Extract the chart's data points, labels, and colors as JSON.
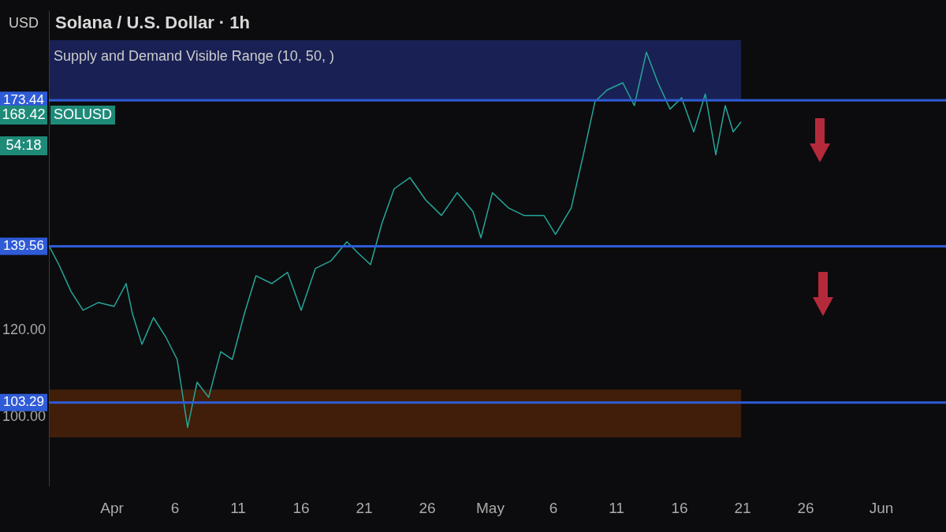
{
  "chart_data": {
    "type": "line",
    "title": "Solana / U.S. Dollar · 1h",
    "ylabel": "USD",
    "x": [
      "--03-27T00:00",
      "--03-27T19:00",
      "--03-28T18:00",
      "--03-29T17:00",
      "--03-30T22:00",
      "--04-01T04:00",
      "--04-02T03:00",
      "--04-02T15:00",
      "--04-03T09:00",
      "--04-04T07:00",
      "--04-05T06:00",
      "--04-06T04:00",
      "--04-07T00:00",
      "--04-07T18:00",
      "--04-08T16:00",
      "--04-09T15:00",
      "--04-10T13:00",
      "--04-11T12:00",
      "--04-12T10:00",
      "--04-13T16:00",
      "--04-14T22:00",
      "--04-16T00:00",
      "--04-17T03:00",
      "--04-18T09:00",
      "--04-19T15:00",
      "--04-20T13:00",
      "--04-21T12:00",
      "--04-22T10:00",
      "--04-23T09:00",
      "--04-24T15:00",
      "--04-25T21:00",
      "--04-27T03:00",
      "--04-28T09:00",
      "--04-29T15:00",
      "--04-30T06:00",
      "--05-01T04:00",
      "--05-02T10:00",
      "--05-03T16:00",
      "--05-05T06:00",
      "--05-06T04:00",
      "--05-07T10:00",
      "--05-08T09:00",
      "--05-09T07:00",
      "--05-10T06:00",
      "--05-11T12:00",
      "--05-12T10:00",
      "--05-13T09:00",
      "--05-14T07:00",
      "--05-15T06:00",
      "--05-16T04:00",
      "--05-17T03:00",
      "--05-18T01:00",
      "--05-18T21:00",
      "--05-19T15:00",
      "--05-20T06:00",
      "--05-20T21:00"
    ],
    "series": [
      {
        "color": "#26a69a",
        "values": [
          139.7,
          135.3,
          129.1,
          124.7,
          126.5,
          125.6,
          130.9,
          123.9,
          116.8,
          123,
          118.6,
          113.3,
          97.5,
          108,
          104.5,
          115.1,
          113.3,
          123.9,
          132.7,
          130.9,
          133.5,
          124.7,
          134.4,
          136.2,
          140.6,
          137.9,
          135.3,
          145,
          152.9,
          155.5,
          150.3,
          146.7,
          152,
          147.6,
          141.5,
          152,
          148.5,
          146.7,
          146.7,
          142.3,
          148.5,
          160.8,
          173.1,
          175.8,
          177.5,
          172.2,
          184.6,
          177.5,
          171.4,
          174,
          166.1,
          174.9,
          160.8,
          172.2,
          166.1,
          168.4
        ]
      }
    ],
    "xlim": [
      "--03-27T00:00",
      "--06-06T03:00"
    ],
    "xticks": [
      {
        "value": "--04-01",
        "label": "Apr"
      },
      {
        "value": "--04-06",
        "label": "6"
      },
      {
        "value": "--04-11",
        "label": "11"
      },
      {
        "value": "--04-16",
        "label": "16"
      },
      {
        "value": "--04-21",
        "label": "21"
      },
      {
        "value": "--04-26",
        "label": "26"
      },
      {
        "value": "--05-01",
        "label": "May"
      },
      {
        "value": "--05-06",
        "label": "6"
      },
      {
        "value": "--05-11",
        "label": "11"
      },
      {
        "value": "--05-16",
        "label": "16"
      },
      {
        "value": "--05-21",
        "label": "21"
      },
      {
        "value": "--05-26",
        "label": "26"
      },
      {
        "value": "--06-01",
        "label": "Jun"
      }
    ],
    "ylim": [
      84,
      194
    ],
    "yticks": [
      {
        "value": 100,
        "label": "100.00"
      },
      {
        "value": 120,
        "label": "120.00"
      }
    ],
    "ref_lines": [
      {
        "axis": "y",
        "value": 173.44,
        "label": "173.44",
        "color": "#2f5bd6"
      },
      {
        "axis": "y",
        "value": 139.56,
        "label": "139.56",
        "color": "#2f5bd6"
      },
      {
        "axis": "y",
        "value": 103.29,
        "label": "103.29",
        "color": "#2f5bd6"
      }
    ],
    "bands": [
      {
        "axis": "y",
        "from": 173.44,
        "to": 187.4,
        "color": "#1c2660"
      },
      {
        "axis": "y",
        "from": 95.2,
        "to": 106.3,
        "color": "#4a2208"
      }
    ],
    "annotations": [
      "Supply and Demand Visible Range (10, 50, )",
      "168.42",
      "SOLUSD",
      "54:18"
    ],
    "grid": false,
    "legend": false,
    "marker": "none",
    "line_style": "solid"
  }
}
